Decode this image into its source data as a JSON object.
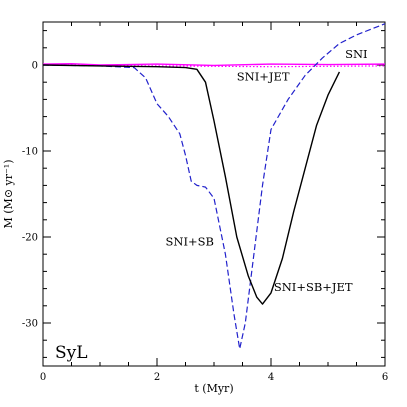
{
  "chart_data": {
    "type": "line",
    "xlabel": "t (Myr)",
    "ylabel": "M (M⊙ yr⁻¹)",
    "xlim": [
      0,
      6
    ],
    "ylim": [
      -35,
      5
    ],
    "xticks": [
      0,
      2,
      4,
      6
    ],
    "yticks": [
      0,
      -10,
      -20,
      -30
    ],
    "grid": false,
    "panel_label": "SyL",
    "series": [
      {
        "name": "SNI",
        "color": "#ff00ff",
        "style": "dotted",
        "x": [
          0,
          1,
          2,
          3,
          4,
          5,
          6
        ],
        "y": [
          0,
          -0.05,
          -0.1,
          -0.15,
          -0.2,
          -0.15,
          -0.1
        ]
      },
      {
        "name": "SNI+JET",
        "color": "#ff00ff",
        "style": "solid",
        "x": [
          0,
          0.5,
          1,
          2,
          3,
          4,
          5,
          6
        ],
        "y": [
          0.1,
          0.15,
          0,
          0.1,
          -0.05,
          0.1,
          0.05,
          0.1
        ]
      },
      {
        "name": "SNI+SB",
        "color": "#2222cc",
        "style": "dashed",
        "x": [
          0,
          1,
          1.6,
          1.8,
          2,
          2.2,
          2.4,
          2.5,
          2.6,
          2.7,
          2.85,
          3,
          3.2,
          3.35,
          3.45,
          3.55,
          3.7,
          3.85,
          4,
          4.3,
          4.6,
          4.9,
          5.2,
          5.5,
          6
        ],
        "y": [
          0,
          -0.1,
          -0.3,
          -1.5,
          -4.5,
          -6,
          -8,
          -10.5,
          -13.5,
          -14,
          -14.2,
          -15.5,
          -22,
          -29,
          -33,
          -30,
          -22,
          -14,
          -7.5,
          -4,
          -1.2,
          0.8,
          2.5,
          3.5,
          4.8
        ]
      },
      {
        "name": "SNI+SB+JET",
        "color": "#000000",
        "style": "solid",
        "x": [
          0,
          1,
          2,
          2.5,
          2.7,
          2.85,
          3,
          3.2,
          3.4,
          3.6,
          3.75,
          3.85,
          4,
          4.2,
          4.4,
          4.6,
          4.8,
          5,
          5.2
        ],
        "y": [
          0,
          -0.1,
          -0.2,
          -0.3,
          -0.5,
          -2,
          -6.5,
          -13,
          -20,
          -24.5,
          -27,
          -27.8,
          -26.5,
          -22.5,
          -17,
          -12,
          -7,
          -3.5,
          -0.8
        ]
      }
    ],
    "annotations": [
      {
        "text": "SNI",
        "x": 5.3,
        "y": 0.8
      },
      {
        "text": "SNI+JET",
        "x": 3.4,
        "y": -1.8
      },
      {
        "text": "SNI+SB",
        "x": 2.15,
        "y": -21
      },
      {
        "text": "SNI+SB+JET",
        "x": 4.05,
        "y": -26.3
      }
    ]
  }
}
